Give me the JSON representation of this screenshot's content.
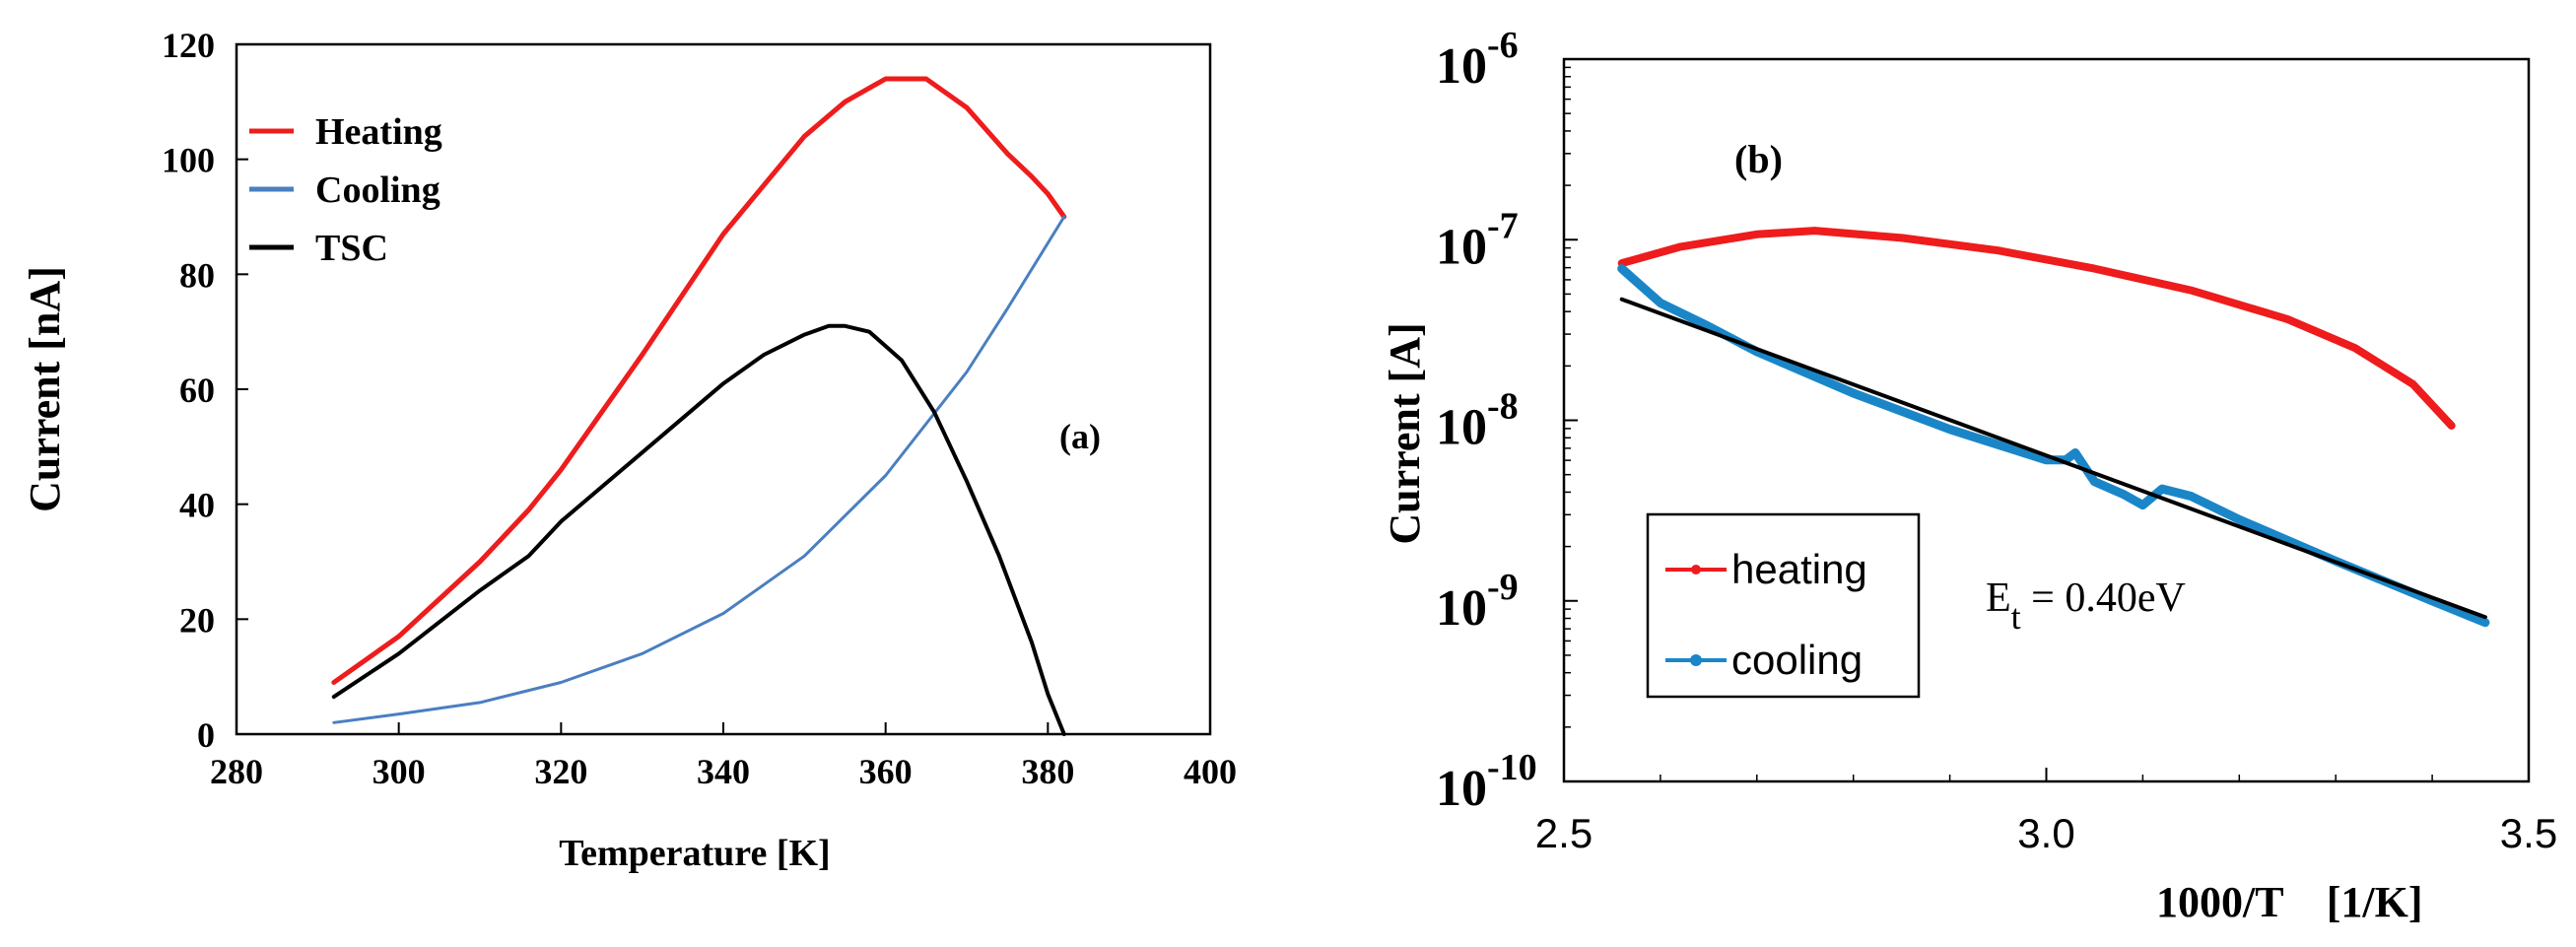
{
  "colors": {
    "heating": "#ee1c1c",
    "cooling": "#4a7fc0",
    "tsc": "#000000",
    "cooling_b": "#1a86c8",
    "fit_b": "#000000"
  },
  "chart_data": [
    {
      "type": "line",
      "panel_label": "(a)",
      "xlabel": "Temperature [K]",
      "ylabel": "Current [nA]",
      "xlim": [
        280,
        400
      ],
      "ylim": [
        0,
        120
      ],
      "xticks": [
        "280",
        "300",
        "320",
        "340",
        "360",
        "380",
        "400"
      ],
      "yticks": [
        "0",
        "20",
        "40",
        "60",
        "80",
        "100",
        "120"
      ],
      "legend": [
        "Heating",
        "Cooling",
        "TSC"
      ],
      "legend_position": "top-left",
      "series": [
        {
          "name": "Heating",
          "x": [
            292,
            300,
            310,
            316,
            320,
            330,
            340,
            350,
            355,
            360,
            365,
            370,
            375,
            378,
            380,
            382
          ],
          "y": [
            9,
            17,
            30,
            39,
            46,
            66,
            87,
            104,
            110,
            114,
            114,
            109,
            101,
            97,
            94,
            90
          ]
        },
        {
          "name": "Cooling",
          "x": [
            292,
            300,
            310,
            320,
            330,
            340,
            350,
            360,
            370,
            375,
            382
          ],
          "y": [
            2,
            3.5,
            5.5,
            9,
            14,
            21,
            31,
            45,
            63,
            74,
            90
          ]
        },
        {
          "name": "TSC",
          "x": [
            292,
            300,
            310,
            316,
            320,
            330,
            340,
            345,
            350,
            353,
            355,
            358,
            362,
            366,
            370,
            374,
            378,
            380,
            382
          ],
          "y": [
            6.5,
            14,
            25,
            31,
            37,
            49,
            61,
            66,
            69.5,
            71,
            71,
            70,
            65,
            56,
            44,
            31,
            16,
            7,
            0
          ]
        }
      ]
    },
    {
      "type": "line",
      "panel_label": "(b)",
      "xlabel": "1000/T    [1/K]",
      "ylabel": "Current [A]",
      "xlim": [
        2.5,
        3.5
      ],
      "ylim_log10": [
        -10,
        -6
      ],
      "xticks": [
        "2.5",
        "3.0",
        "3.5"
      ],
      "yticks": [
        {
          "base": "10",
          "exp": "-10",
          "value": -10
        },
        {
          "base": "10",
          "exp": "-9",
          "value": -9
        },
        {
          "base": "10",
          "exp": "-8",
          "value": -8
        },
        {
          "base": "10",
          "exp": "-7",
          "value": -7
        },
        {
          "base": "10",
          "exp": "-6",
          "value": -6
        }
      ],
      "legend": [
        "heating",
        "cooling"
      ],
      "legend_position": "bottom-left",
      "annotation": {
        "main": "E",
        "sub": "t",
        "rest": " = 0.40eV"
      },
      "series": [
        {
          "name": "heating",
          "x": [
            2.56,
            2.62,
            2.7,
            2.76,
            2.85,
            2.95,
            3.05,
            3.15,
            3.25,
            3.32,
            3.38,
            3.42
          ],
          "y_log10": [
            -7.13,
            -7.04,
            -6.97,
            -6.95,
            -6.99,
            -7.06,
            -7.16,
            -7.28,
            -7.44,
            -7.6,
            -7.8,
            -8.03
          ]
        },
        {
          "name": "cooling",
          "x": [
            2.56,
            2.6,
            2.65,
            2.7,
            2.8,
            2.9,
            3.0,
            3.02,
            3.03,
            3.05,
            3.08,
            3.1,
            3.12,
            3.15,
            3.2,
            3.3,
            3.4,
            3.455
          ],
          "y_log10": [
            -7.16,
            -7.35,
            -7.48,
            -7.62,
            -7.85,
            -8.05,
            -8.22,
            -8.22,
            -8.18,
            -8.34,
            -8.41,
            -8.47,
            -8.38,
            -8.42,
            -8.55,
            -8.78,
            -9.0,
            -9.12
          ]
        },
        {
          "name": "fit",
          "x": [
            2.56,
            3.455
          ],
          "y_log10": [
            -7.33,
            -9.09
          ]
        }
      ]
    }
  ]
}
